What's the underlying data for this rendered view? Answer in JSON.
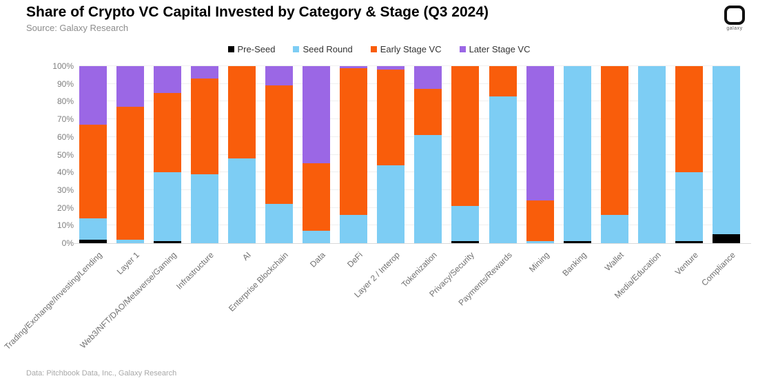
{
  "header": {
    "title": "Share of Crypto VC Capital Invested by Category & Stage (Q3 2024)",
    "source": "Source: Galaxy Research",
    "logo_word": "galaxy"
  },
  "footer": {
    "text": "Data: Pitchbook Data, Inc., Galaxy Research"
  },
  "colors": {
    "pre_seed": "#000000",
    "seed_round": "#7dcdf4",
    "early_stage": "#f95d0b",
    "later_stage": "#9b67e5",
    "grid": "#efefef",
    "axis": "#d9d9d9"
  },
  "chart_data": {
    "type": "bar",
    "stacked": true,
    "percent": true,
    "title": "Share of Crypto VC Capital Invested by Category & Stage (Q3 2024)",
    "xlabel": "",
    "ylabel": "",
    "ylim": [
      0,
      100
    ],
    "grid": true,
    "legend_position": "top-center",
    "yticks": [
      "0%",
      "10%",
      "20%",
      "30%",
      "40%",
      "50%",
      "60%",
      "70%",
      "80%",
      "90%",
      "100%"
    ],
    "categories": [
      "Trading/Exchange/Investing/Lending",
      "Layer 1",
      "Web3/NFT/DAO/Metaverse/Gaming",
      "Infrastructure",
      "AI",
      "Enterprise Blockchain",
      "Data",
      "DeFi",
      "Layer 2 / Interop",
      "Tokenization",
      "Privacy/Security",
      "Payments/Rewards",
      "Mining",
      "Banking",
      "Wallet",
      "Media/Education",
      "Venture",
      "Compliance"
    ],
    "series": [
      {
        "name": "Pre-Seed",
        "color": "#000000",
        "values": [
          2,
          0,
          1,
          0,
          0,
          0,
          0,
          0,
          0,
          0,
          1,
          0,
          0,
          1,
          0,
          0,
          1,
          5
        ]
      },
      {
        "name": "Seed Round",
        "color": "#7dcdf4",
        "values": [
          12,
          2,
          39,
          39,
          48,
          22,
          7,
          16,
          44,
          61,
          20,
          83,
          1,
          99,
          16,
          100,
          39,
          95
        ]
      },
      {
        "name": "Early Stage VC",
        "color": "#f95d0b",
        "values": [
          53,
          75,
          45,
          54,
          52,
          67,
          38,
          83,
          54,
          26,
          79,
          17,
          23,
          0,
          84,
          0,
          60,
          0
        ]
      },
      {
        "name": "Later Stage VC",
        "color": "#9b67e5",
        "values": [
          33,
          23,
          15,
          7,
          0,
          11,
          55,
          1,
          2,
          13,
          0,
          0,
          76,
          0,
          0,
          0,
          0,
          0
        ]
      }
    ]
  }
}
